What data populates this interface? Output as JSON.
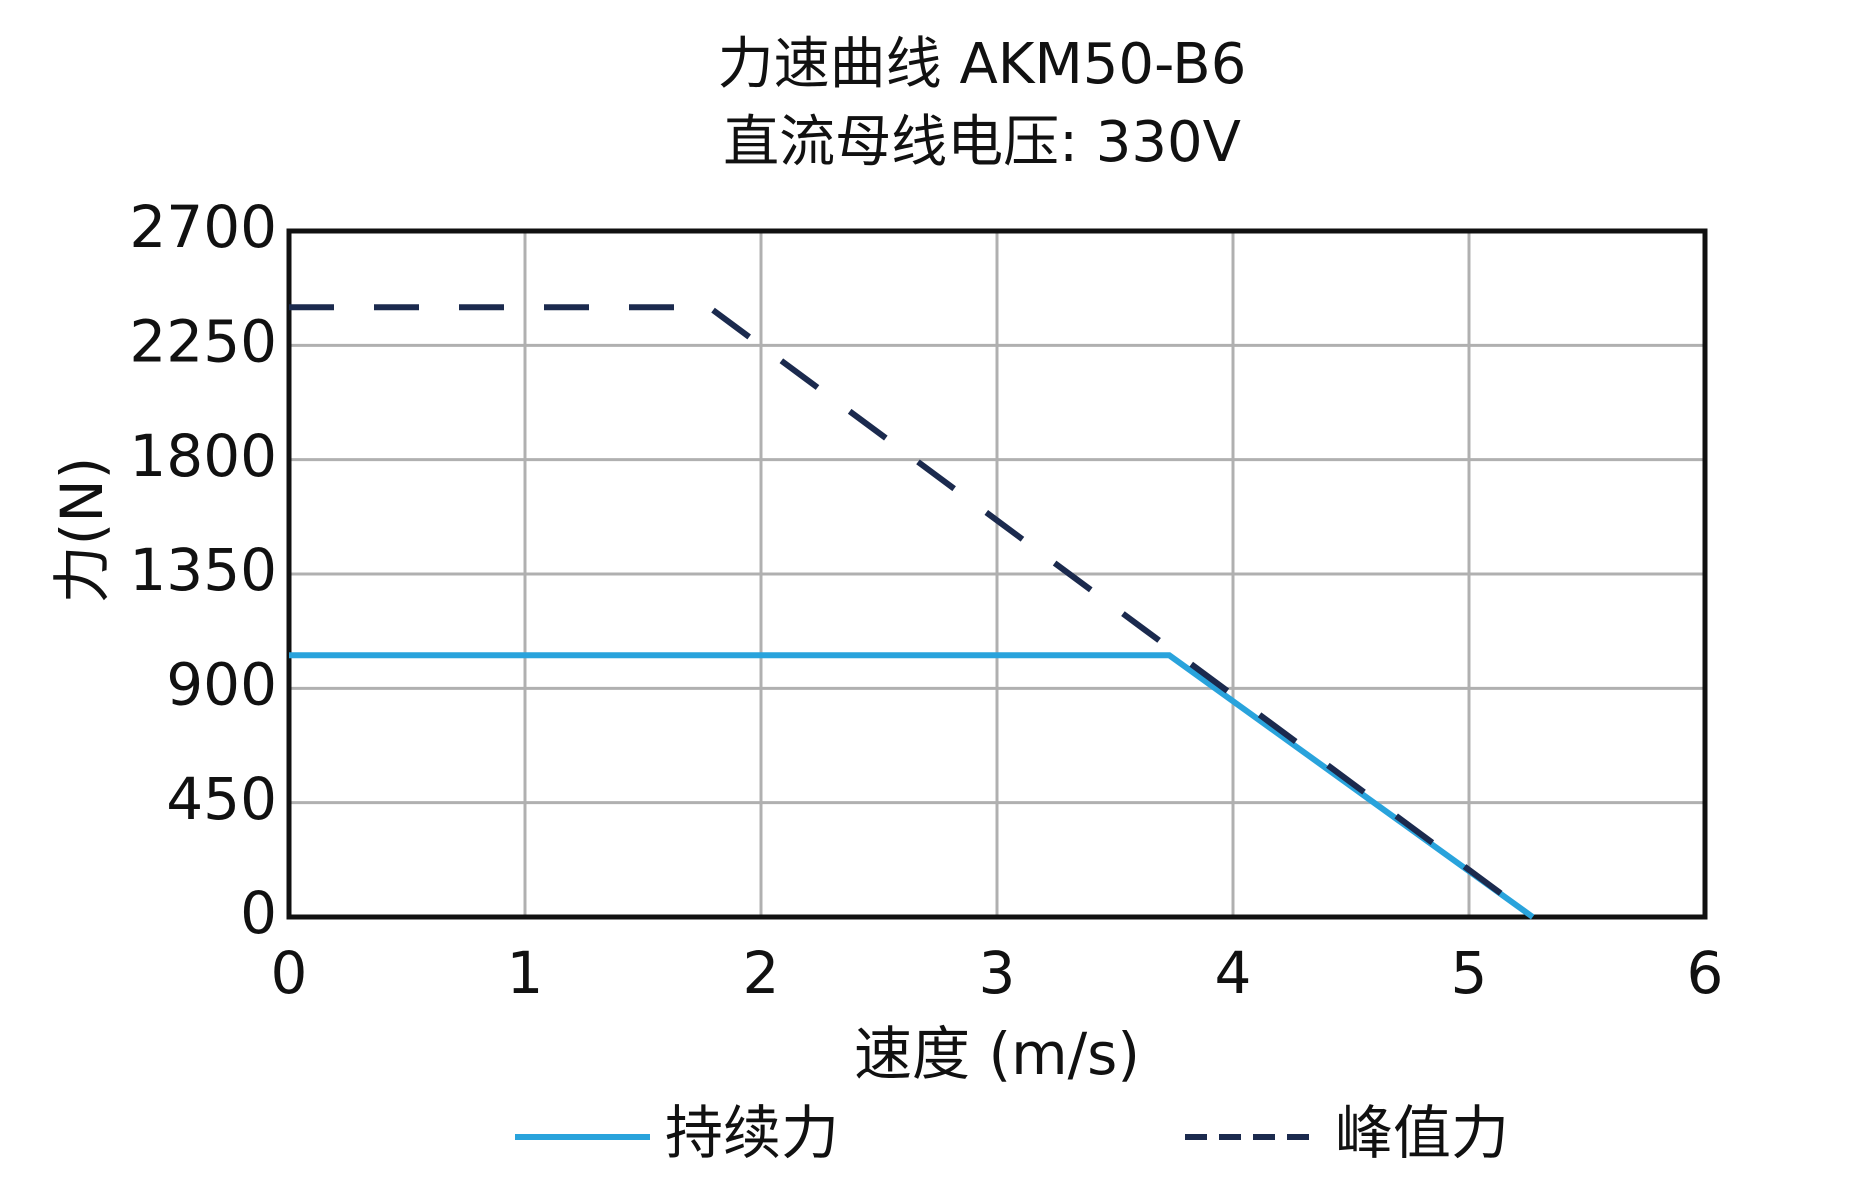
{
  "chart_data": {
    "type": "line",
    "title": "力速曲线 AKM50-B6",
    "subtitle": "直流母线电压: 330V",
    "x_label": "速度 (m/s)",
    "y_label": "力(N)",
    "series": [
      {
        "name": "持续力",
        "color": "#29a3dc",
        "style": "solid",
        "x": [
          0,
          3.73,
          5.27
        ],
        "values": [
          1030,
          1030,
          0
        ]
      },
      {
        "name": "峰值力",
        "color": "#1b2a4e",
        "style": "dashed",
        "x": [
          0,
          1.78,
          5.27
        ],
        "values": [
          2400,
          2400,
          0
        ]
      }
    ],
    "xlim": [
      0,
      6
    ],
    "xticks": [
      0,
      1,
      2,
      3,
      4,
      5,
      6
    ],
    "ylim": [
      0,
      2700
    ],
    "yticks": [
      0,
      450,
      900,
      1350,
      1800,
      2250,
      2700
    ],
    "grid": true
  }
}
